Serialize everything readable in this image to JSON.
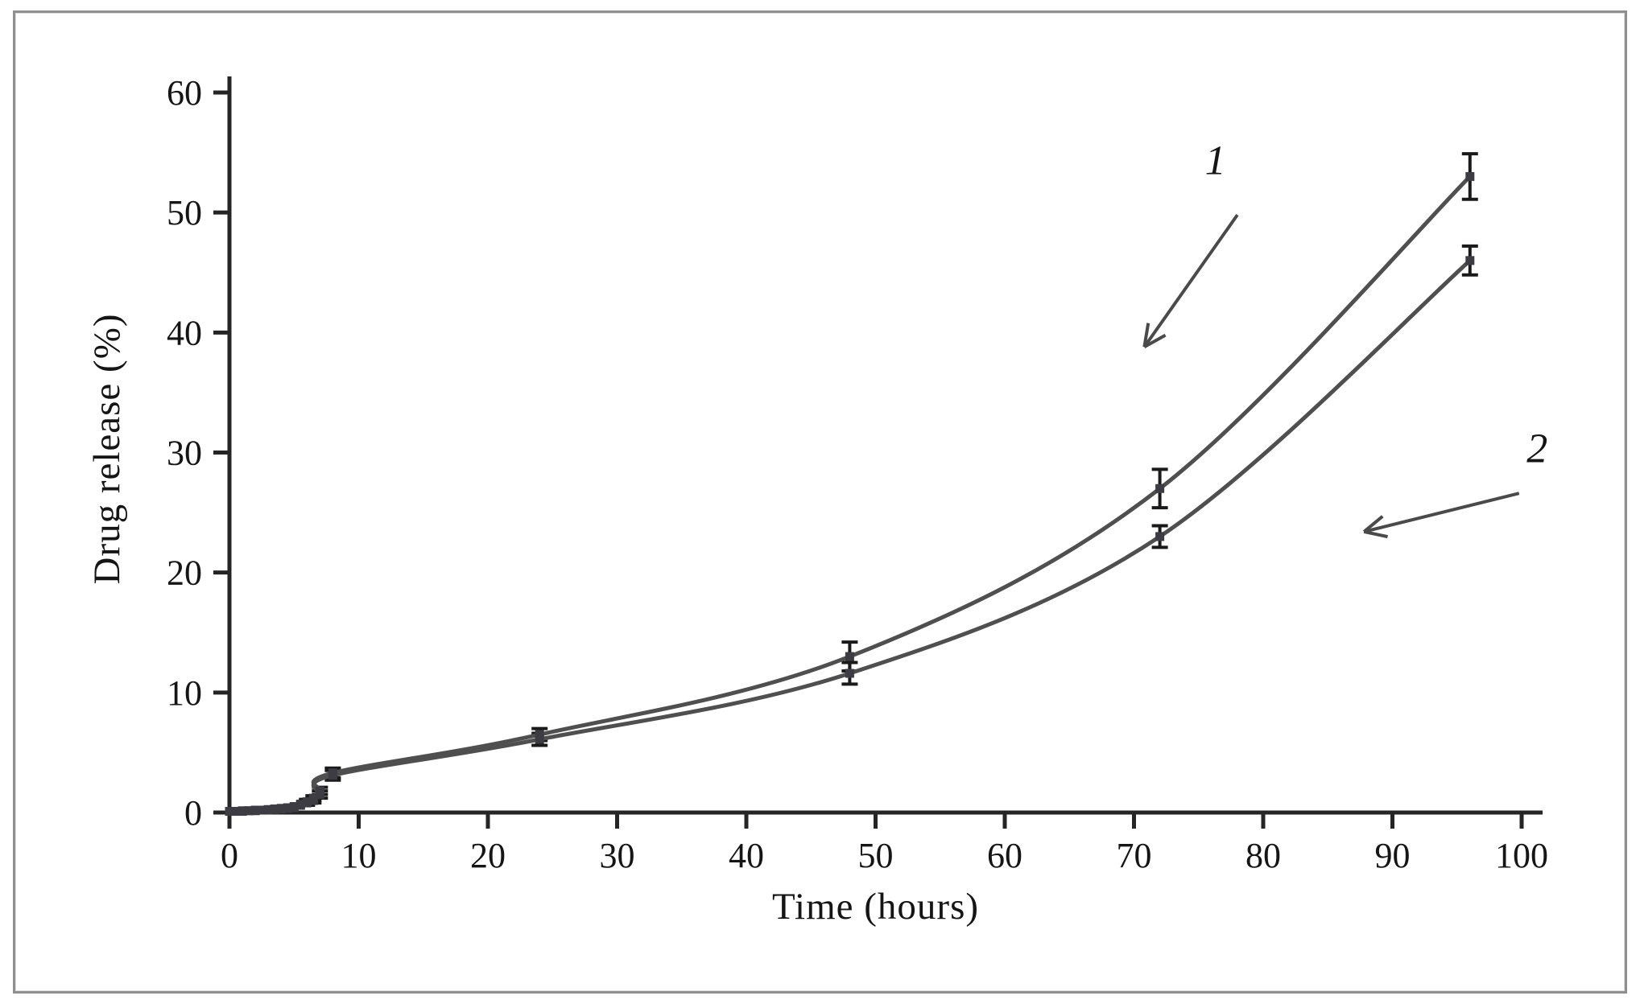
{
  "figure": {
    "kind": "patent-style line figure",
    "frame_color": "#8f8f8f",
    "background": "#ffffff"
  },
  "chart_data": {
    "type": "line",
    "title": "",
    "xlabel": "Time (hours)",
    "ylabel": "Drug release (%)",
    "xlim": [
      0,
      100
    ],
    "ylim": [
      0,
      60
    ],
    "xticks": [
      0,
      10,
      20,
      30,
      40,
      50,
      60,
      70,
      80,
      90,
      100
    ],
    "yticks": [
      0,
      10,
      20,
      30,
      40,
      50,
      60
    ],
    "grid": false,
    "legend_position": "none",
    "line_color": "#4f4f4f",
    "marker_color": "#3c3c42",
    "error_color": "#1a1a1a",
    "x": [
      0,
      0.5,
      1,
      1.5,
      2,
      2.5,
      3,
      3.5,
      4,
      4.5,
      5,
      5.5,
      6,
      6.5,
      7,
      8,
      24,
      48,
      72,
      96
    ],
    "series": [
      {
        "name": "1",
        "y": [
          0.1,
          0.1,
          0.15,
          0.15,
          0.2,
          0.2,
          0.25,
          0.3,
          0.35,
          0.4,
          0.5,
          0.7,
          0.9,
          1.2,
          1.8,
          3.3,
          6.5,
          13.0,
          27.0,
          53.0
        ],
        "yerr": [
          0,
          0,
          0,
          0,
          0,
          0,
          0,
          0,
          0,
          0,
          0,
          0,
          0.2,
          0.2,
          0.3,
          0.4,
          0.5,
          1.2,
          1.6,
          1.9
        ]
      },
      {
        "name": "2",
        "y": [
          0.1,
          0.1,
          0.1,
          0.15,
          0.15,
          0.2,
          0.2,
          0.25,
          0.3,
          0.35,
          0.4,
          0.6,
          0.8,
          1.0,
          1.5,
          3.1,
          6.1,
          11.6,
          23.0,
          46.0
        ],
        "yerr": [
          0,
          0,
          0,
          0,
          0,
          0,
          0,
          0,
          0,
          0,
          0,
          0,
          0.2,
          0.2,
          0.3,
          0.4,
          0.5,
          0.9,
          0.9,
          1.2
        ]
      }
    ],
    "annotations": [
      {
        "label": "1",
        "text_xy": [
          76.3,
          53.2
        ],
        "arrow_from": [
          78.0,
          49.8
        ],
        "arrow_to": [
          70.8,
          38.8
        ]
      },
      {
        "label": "2",
        "text_xy": [
          101.2,
          29.2
        ],
        "arrow_from": [
          99.8,
          26.6
        ],
        "arrow_to": [
          87.8,
          23.4
        ]
      }
    ]
  }
}
